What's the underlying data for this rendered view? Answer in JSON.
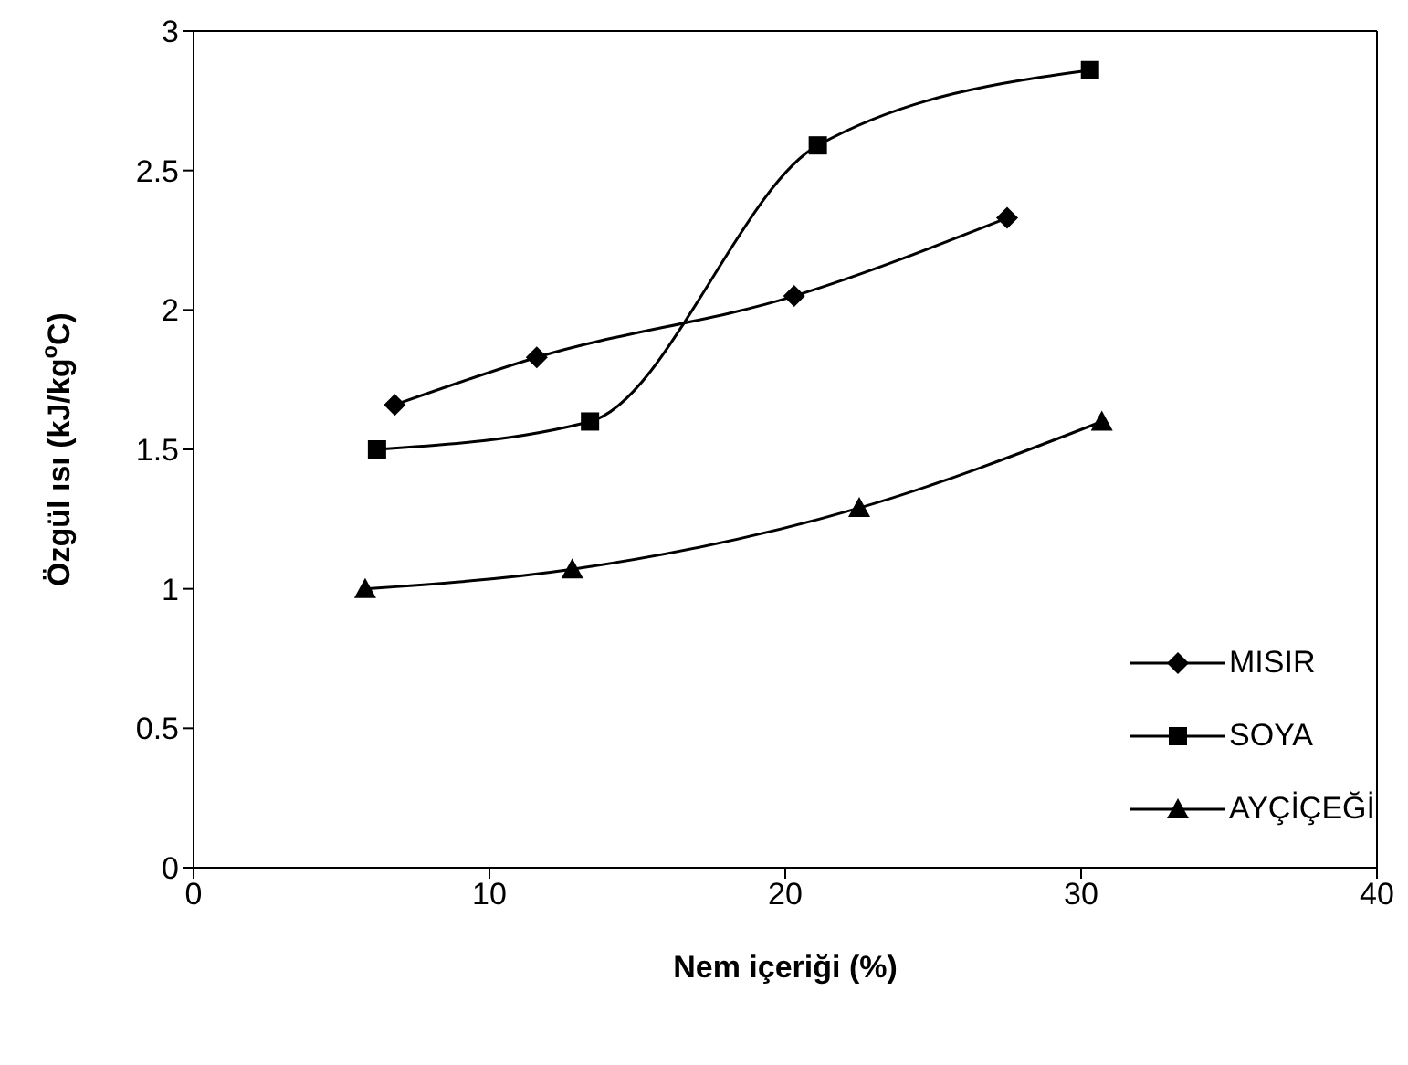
{
  "chart_data": {
    "type": "line",
    "xlabel": "Nem içeriği (%)",
    "ylabel": "Özgül ısı (kJ/kg$^{o}$C)",
    "xlim": [
      0,
      40
    ],
    "xticks": [
      0,
      10,
      20,
      30,
      40
    ],
    "ylim": [
      0,
      3
    ],
    "yticks": [
      0,
      0.5,
      1,
      1.5,
      2,
      2.5,
      3
    ],
    "grid": false,
    "legend": "bottom right",
    "line_style": "solid",
    "series": [
      {
        "name": "MISIR",
        "color": "#000000",
        "marker": "diamond",
        "x": [
          6.8,
          11.6,
          20.3,
          27.5
        ],
        "values": [
          1.66,
          1.83,
          2.05,
          2.33
        ]
      },
      {
        "name": "SOYA",
        "color": "#000000",
        "marker": "square",
        "x": [
          6.2,
          13.4,
          21.1,
          30.3
        ],
        "values": [
          1.5,
          1.6,
          2.59,
          2.86
        ]
      },
      {
        "name": "AYÇİÇEĞİ",
        "color": "#000000",
        "marker": "triangle",
        "x": [
          5.8,
          12.8,
          22.5,
          30.7
        ],
        "values": [
          1.0,
          1.07,
          1.29,
          1.6
        ]
      }
    ]
  }
}
